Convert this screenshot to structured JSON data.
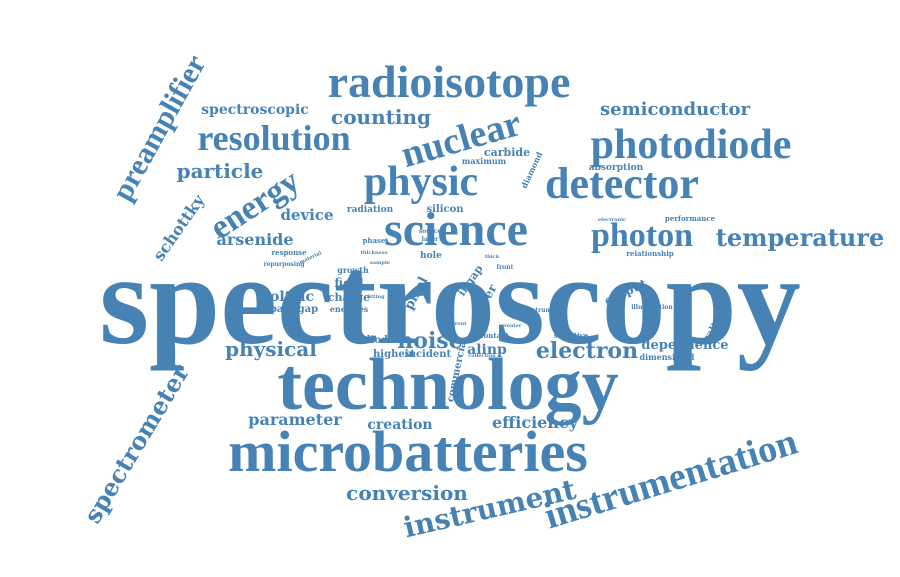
{
  "word_color": "#4682b4",
  "words": [
    {
      "text": "spectroscopy"
    },
    {
      "text": "technology"
    },
    {
      "text": "microbatteries"
    },
    {
      "text": "radioisotope"
    },
    {
      "text": "instrumentation"
    },
    {
      "text": "science"
    },
    {
      "text": "detector"
    },
    {
      "text": "photodiode"
    },
    {
      "text": "physic"
    },
    {
      "text": "nuclear"
    },
    {
      "text": "resolution"
    },
    {
      "text": "preamplifier"
    },
    {
      "text": "energy"
    },
    {
      "text": "photon"
    },
    {
      "text": "spectrometer"
    },
    {
      "text": "temperature"
    },
    {
      "text": "instrument"
    },
    {
      "text": "electron"
    },
    {
      "text": "conversion"
    },
    {
      "text": "particle"
    },
    {
      "text": "noise"
    },
    {
      "text": "physical"
    },
    {
      "text": "schottky"
    },
    {
      "text": "counting"
    },
    {
      "text": "semiconductor"
    },
    {
      "text": "arsenide"
    },
    {
      "text": "efficiency"
    },
    {
      "text": "parameter"
    },
    {
      "text": "creation"
    },
    {
      "text": "spectroscopic"
    },
    {
      "text": "dependence"
    },
    {
      "text": "device"
    },
    {
      "text": "voltaic"
    },
    {
      "text": "alinp"
    },
    {
      "text": "output"
    },
    {
      "text": "carbide"
    },
    {
      "text": "silicon"
    },
    {
      "text": "gallium"
    },
    {
      "text": "field"
    },
    {
      "text": "charge"
    },
    {
      "text": "power"
    },
    {
      "text": "diode"
    },
    {
      "text": "highest"
    },
    {
      "text": "incident"
    },
    {
      "text": "commercial"
    },
    {
      "text": "ingap"
    },
    {
      "text": "pixel"
    },
    {
      "text": "hole"
    },
    {
      "text": "absorption"
    },
    {
      "text": "radiation"
    },
    {
      "text": "bandgap"
    },
    {
      "text": "diamond"
    },
    {
      "text": "maximum"
    },
    {
      "text": "dimensional"
    },
    {
      "text": "relationship"
    },
    {
      "text": "performance"
    },
    {
      "text": "response"
    },
    {
      "text": "growth"
    },
    {
      "text": "energies"
    },
    {
      "text": "illumination"
    },
    {
      "text": "sensitive"
    },
    {
      "text": "contact"
    },
    {
      "text": "spectrum"
    },
    {
      "text": "electronic"
    },
    {
      "text": "phase"
    },
    {
      "text": "layer"
    },
    {
      "text": "source"
    },
    {
      "text": "current"
    },
    {
      "text": "thick"
    },
    {
      "text": "front"
    },
    {
      "text": "greater"
    },
    {
      "text": "collection"
    },
    {
      "text": "repurposing"
    },
    {
      "text": "material"
    },
    {
      "text": "sample"
    },
    {
      "text": "thickness"
    },
    {
      "text": "fitting"
    }
  ]
}
